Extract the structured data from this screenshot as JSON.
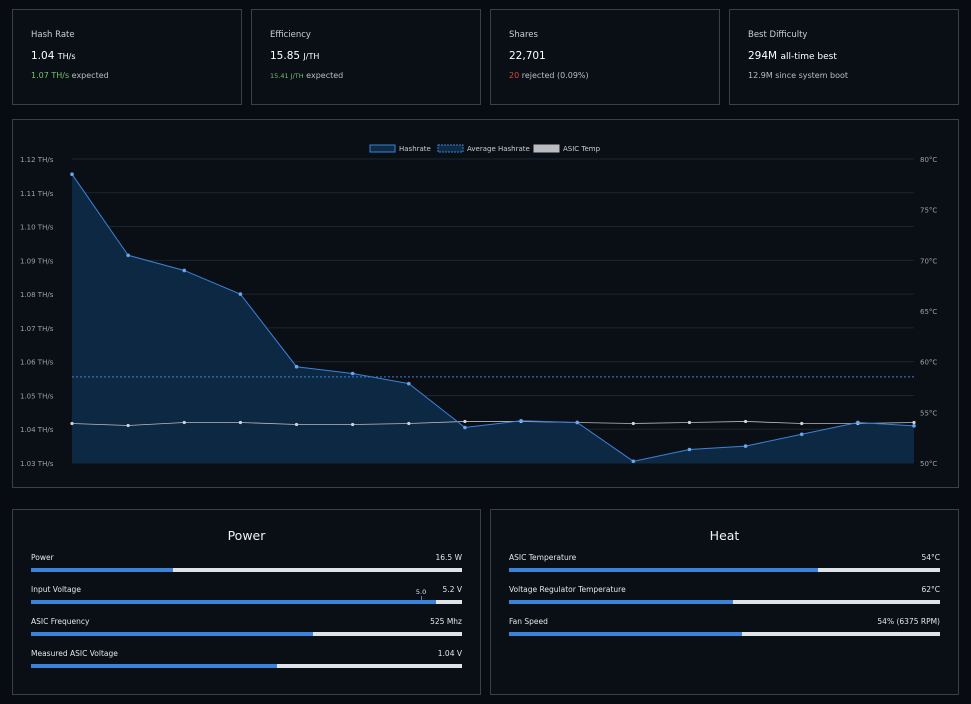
{
  "stats": [
    {
      "title": "Hash Rate",
      "value": "1.04",
      "unit": "TH/s",
      "sub_hi": "1.07 TH/s",
      "sub_hi_color": "green",
      "sub_rest": " expected"
    },
    {
      "title": "Efficiency",
      "value": "15.85",
      "unit": "J/TH",
      "sub_hi": "15.41 J/TH",
      "sub_hi_color": "green",
      "sub_rest": " expected"
    },
    {
      "title": "Shares",
      "value": "22,701",
      "unit": "",
      "sub_hi": "20",
      "sub_hi_color": "red",
      "sub_rest": " rejected (0.09%)"
    },
    {
      "title": "Best Difficulty",
      "value": "294M",
      "unit": "all-time best",
      "sub_hi": "12.9M",
      "sub_hi_color": "white",
      "sub_rest": " since system boot"
    }
  ],
  "chart_data": {
    "type": "line",
    "legend": [
      "Hashrate",
      "Average Hashrate",
      "ASIC Temp"
    ],
    "legend_position": "top-center",
    "y_left": {
      "ticks": [
        "1.12 TH/s",
        "1.11 TH/s",
        "1.10 TH/s",
        "1.09 TH/s",
        "1.08 TH/s",
        "1.07 TH/s",
        "1.06 TH/s",
        "1.05 TH/s",
        "1.04 TH/s",
        "1.03 TH/s"
      ],
      "min": 1.03,
      "max": 1.12
    },
    "y_right": {
      "ticks": [
        "80°C",
        "75°C",
        "70°C",
        "65°C",
        "60°C",
        "55°C",
        "50°C"
      ],
      "min": 50,
      "max": 80
    },
    "series": [
      {
        "name": "Hashrate",
        "values": [
          1.1155,
          1.0915,
          1.087,
          1.08,
          1.0585,
          1.0565,
          1.0535,
          1.0405,
          1.0425,
          1.042,
          1.0305,
          1.034,
          1.035,
          1.0385,
          1.042,
          1.041
        ],
        "color": "#3b82d9"
      },
      {
        "name": "Average Hashrate",
        "values": [
          1.0555
        ],
        "color": "#3b82d9"
      },
      {
        "name": "ASIC Temp",
        "values": [
          53.9,
          53.7,
          54.0,
          54.0,
          53.8,
          53.8,
          53.9,
          54.1,
          54.1,
          54.0,
          53.9,
          54.0,
          54.1,
          53.9,
          53.9,
          54.0
        ],
        "color": "#b9bcc1"
      }
    ],
    "grid": true
  },
  "power": {
    "title": "Power",
    "metrics": [
      {
        "label": "Power",
        "value": "16.5 W",
        "fill": 0.33
      },
      {
        "label": "Input Voltage",
        "value": "5.2 V",
        "fill": 0.94,
        "marker": 0.905,
        "marker_label": "5.0"
      },
      {
        "label": "ASIC Frequency",
        "value": "525 Mhz",
        "fill": 0.655
      },
      {
        "label": "Measured ASIC Voltage",
        "value": "1.04 V",
        "fill": 0.57
      }
    ]
  },
  "heat": {
    "title": "Heat",
    "metrics": [
      {
        "label": "ASIC Temperature",
        "value": "54°C",
        "fill": 0.717
      },
      {
        "label": "Voltage Regulator Temperature",
        "value": "62°C",
        "fill": 0.52
      },
      {
        "label": "Fan Speed",
        "value": "54% (6375 RPM)",
        "fill": 0.54
      }
    ]
  },
  "colors": {
    "accent": "#3b82d9",
    "green": "#6ec66a",
    "red": "#e0443f",
    "border": "#3a4048"
  }
}
